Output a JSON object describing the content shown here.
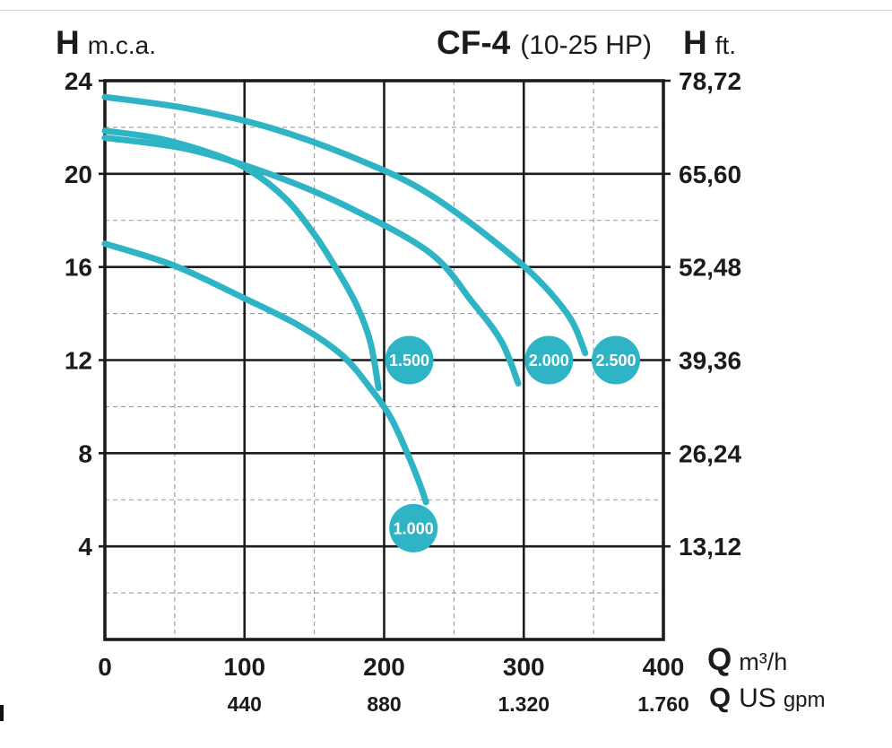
{
  "header": {
    "axis_left_symbol": "H",
    "axis_left_unit": "m.c.a.",
    "model": "CF-4",
    "power": "(10-25 HP)",
    "axis_right_symbol": "H",
    "axis_right_unit": "ft."
  },
  "x_units": {
    "primary_symbol": "Q",
    "primary_unit": "m³/h",
    "secondary_symbol": "Q",
    "secondary_unit_main": "US",
    "secondary_unit_sub": "gpm"
  },
  "chart_data": {
    "type": "line",
    "title": "CF-4 (10-25 HP)",
    "xlabel": "Q m³/h",
    "ylabel": "H m.c.a.",
    "xlim": [
      0,
      400
    ],
    "ylim": [
      0,
      24
    ],
    "grid": "major-solid, minor-dashed",
    "x_axis": {
      "major_ticks": [
        0,
        100,
        200,
        300,
        400
      ],
      "major_tick_labels": [
        "0",
        "100",
        "200",
        "300",
        "400"
      ],
      "minor_ticks": [
        50,
        150,
        250,
        350
      ]
    },
    "x_axis_secondary": {
      "label": "Q US gpm",
      "tick_labels": [
        "440",
        "880",
        "1.320",
        "1.760"
      ],
      "at_values": [
        100,
        200,
        300,
        400
      ]
    },
    "y_axis_left": {
      "label": "H m.c.a.",
      "major_ticks": [
        4,
        8,
        12,
        16,
        20,
        24
      ],
      "major_tick_labels": [
        "4",
        "8",
        "12",
        "16",
        "20",
        "24"
      ],
      "minor_ticks": [
        2,
        6,
        10,
        14,
        18,
        22
      ]
    },
    "y_axis_right": {
      "label": "H ft.",
      "tick_labels": [
        "13,12",
        "26,24",
        "39,36",
        "52,48",
        "65,60",
        "78,72"
      ],
      "at_values": [
        4,
        8,
        12,
        16,
        20,
        24
      ]
    },
    "series": [
      {
        "name": "1.000",
        "points": [
          [
            0,
            17.0
          ],
          [
            50,
            16.05
          ],
          [
            100,
            14.65
          ],
          [
            140,
            13.45
          ],
          [
            170,
            12.2
          ],
          [
            190,
            10.8
          ],
          [
            205,
            9.5
          ],
          [
            218,
            7.8
          ],
          [
            226,
            6.6
          ],
          [
            230,
            5.9
          ]
        ],
        "label_at": [
          221,
          4.78
        ]
      },
      {
        "name": "1.500",
        "points": [
          [
            0,
            21.85
          ],
          [
            40,
            21.5
          ],
          [
            80,
            20.8
          ],
          [
            105,
            20.1
          ],
          [
            130,
            18.9
          ],
          [
            150,
            17.4
          ],
          [
            165,
            16.0
          ],
          [
            180,
            14.4
          ],
          [
            190,
            12.8
          ],
          [
            196,
            10.8
          ]
        ],
        "label_at": [
          218,
          12
        ]
      },
      {
        "name": "2.000",
        "points": [
          [
            0,
            21.55
          ],
          [
            60,
            21.05
          ],
          [
            120,
            19.95
          ],
          [
            175,
            18.55
          ],
          [
            233,
            16.6
          ],
          [
            263,
            14.5
          ],
          [
            284,
            12.8
          ],
          [
            296,
            11.0
          ]
        ],
        "label_at": [
          318,
          12
        ]
      },
      {
        "name": "2.500",
        "points": [
          [
            0,
            23.3
          ],
          [
            60,
            22.8
          ],
          [
            120,
            21.95
          ],
          [
            180,
            20.65
          ],
          [
            233,
            19.1
          ],
          [
            297,
            16.2
          ],
          [
            331,
            14.0
          ],
          [
            344,
            12.3
          ]
        ],
        "label_at": [
          366,
          12
        ]
      }
    ],
    "colors": {
      "curve": "#2fb4c5",
      "grid_major": "#1c1c1c",
      "grid_minor": "#9a9a9a",
      "border": "#1c1c1c",
      "tick_text": "#1b1b1b",
      "curve_label_text": "#ffffff"
    }
  }
}
